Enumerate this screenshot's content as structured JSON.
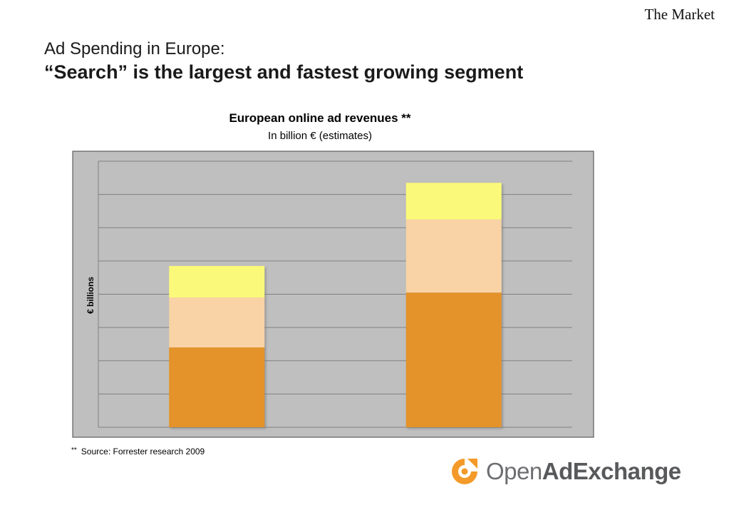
{
  "header": {
    "section_label": "The Market",
    "title_line1": "Ad Spending in Europe:",
    "title_line2": "“Search” is the largest and fastest growing segment"
  },
  "chart_data": {
    "type": "bar",
    "stacked": true,
    "title": "European online ad revenues **",
    "subtitle": "In billion €  (estimates)",
    "ylabel": "€ billions",
    "xlabel": "",
    "categories": [
      "",
      ""
    ],
    "ylim": [
      0,
      8
    ],
    "grid": true,
    "series": [
      {
        "color": "#e3932a",
        "values": [
          2.4,
          4.05
        ]
      },
      {
        "color": "#f9d3a5",
        "values": [
          1.5,
          2.2
        ]
      },
      {
        "color": "#fbf97a",
        "values": [
          0.95,
          1.1
        ]
      }
    ],
    "plot_background": "#bfbfbf"
  },
  "footnote": {
    "mark": "**",
    "text": "Source: Forrester research 2009"
  },
  "logo": {
    "text_light": "Open",
    "text_bold": "AdExchange",
    "icon": "openadexchange-logo-icon",
    "color": "#f39a2a"
  }
}
